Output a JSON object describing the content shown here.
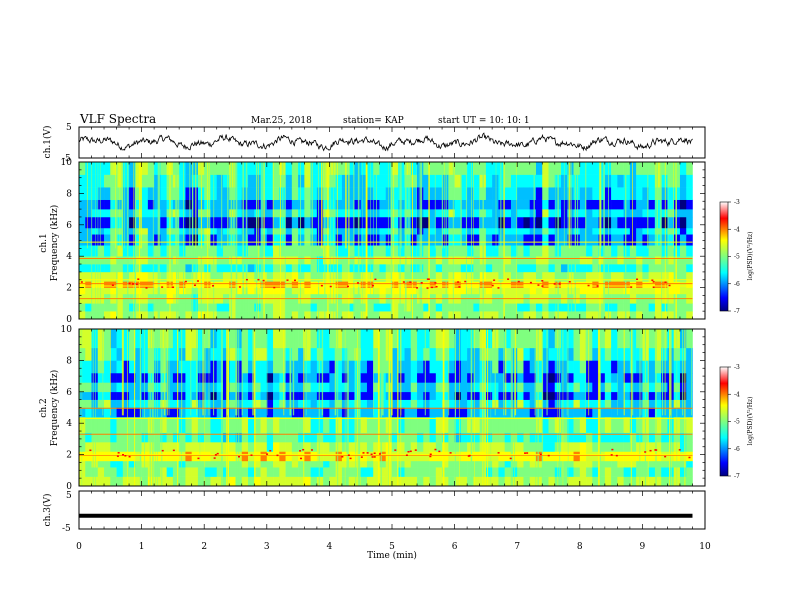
{
  "header": {
    "title": "VLF Spectra",
    "date": "Mar.25, 2018",
    "station": "station= KAP",
    "start": "start  UT =  10: 10: 1"
  },
  "chart_data": [
    {
      "type": "line",
      "name": "ch1-waveform",
      "ylabel": "ch.1(V)",
      "ylim": [
        -5,
        5
      ],
      "ytick_labels": [
        "5",
        "-5"
      ],
      "xlim": [
        0,
        10
      ],
      "waveform": "noisy signal between about -3 and +3 V"
    },
    {
      "type": "heatmap",
      "name": "ch1-spectrogram",
      "ylabel_line1": "ch.1",
      "ylabel_line2": "Frequency (kHz)",
      "ylim": [
        0,
        10
      ],
      "yticks": [
        0,
        2,
        4,
        6,
        8,
        10
      ],
      "xlim": [
        0,
        9.8
      ],
      "colorbar": {
        "label": "log(PSD)(V²/Hz)",
        "range": [
          -7,
          -3
        ],
        "ticks": [
          "-3",
          "-4",
          "-5",
          "-6",
          "-7"
        ]
      }
    },
    {
      "type": "heatmap",
      "name": "ch2-spectrogram",
      "ylabel_line1": "ch.2",
      "ylabel_line2": "Frequency (kHz)",
      "ylim": [
        0,
        10
      ],
      "yticks": [
        0,
        2,
        4,
        6,
        8,
        10
      ],
      "xlim": [
        0,
        9.8
      ],
      "colorbar": {
        "label": "log(PSD)(V²/Hz)",
        "range": [
          -7,
          -3
        ],
        "ticks": [
          "-3",
          "-4",
          "-5",
          "-6",
          "-7"
        ]
      }
    },
    {
      "type": "line",
      "name": "ch3-waveform",
      "ylabel": "ch.3(V)",
      "ylim": [
        -5,
        5
      ],
      "ytick_labels": [
        "5",
        "-5"
      ],
      "xlim": [
        0,
        10
      ],
      "values": [
        -1.5,
        -1.5
      ]
    }
  ],
  "xaxis": {
    "label": "Time  (min)",
    "range": [
      0,
      10
    ],
    "ticks": [
      "0",
      "1",
      "2",
      "3",
      "4",
      "5",
      "6",
      "7",
      "8",
      "9",
      "10"
    ]
  },
  "colors": {
    "spectrum": [
      "#00007f",
      "#0000ff",
      "#00bfff",
      "#00ffff",
      "#7fff7f",
      "#d4ff2a",
      "#ffff00",
      "#ff7f00",
      "#ff0000"
    ],
    "line": "#000000"
  }
}
